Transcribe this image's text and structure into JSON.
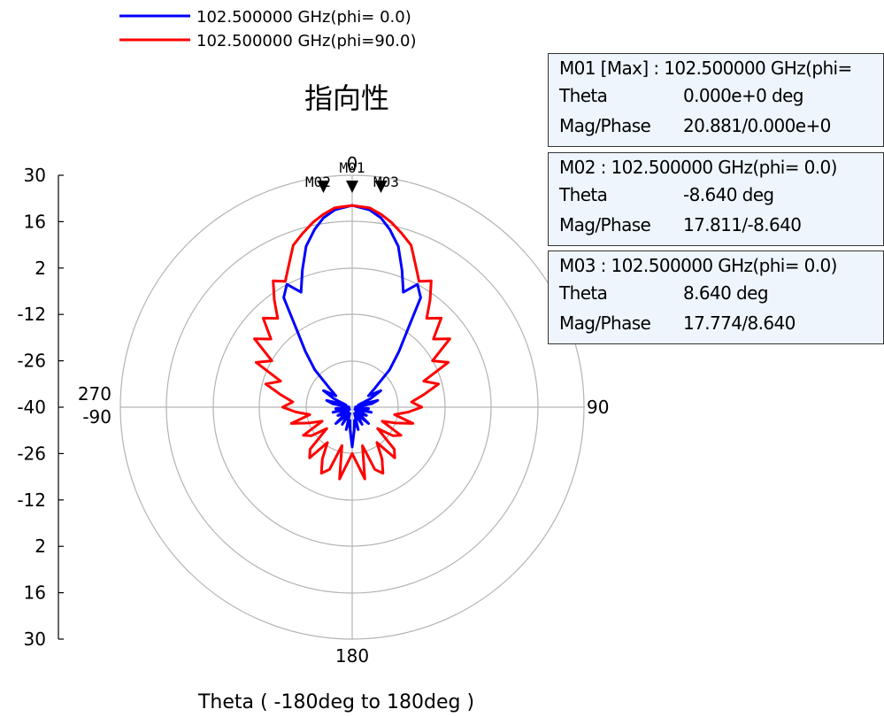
{
  "chart_data": {
    "type": "polar-line",
    "title": "指向性",
    "xlabel": "Theta ( -180deg to 180deg )",
    "radial_axis": {
      "min": -40,
      "max": 30,
      "tick_labels_upper": [
        "30",
        "16",
        "2",
        "-12",
        "-26",
        "-40"
      ],
      "tick_labels_lower": [
        "-26",
        "-12",
        "2",
        "16",
        "30"
      ],
      "ticks": [
        30,
        16,
        2,
        -12,
        -26,
        -40
      ]
    },
    "angle_labels": {
      "top": "0",
      "right": "90",
      "bottom": "180",
      "left_upper": "270",
      "left_lower": "-90"
    },
    "grid": true,
    "legend_position": "top-left",
    "series": [
      {
        "name": "102.500000 GHz(phi= 0.0)",
        "color": "#0000ff",
        "theta": [
          0,
          5,
          8.64,
          12,
          16,
          20,
          24,
          28,
          32,
          36,
          40,
          45,
          50,
          55,
          60,
          65,
          70,
          75,
          80,
          85,
          90,
          95,
          100,
          105,
          110,
          115,
          120,
          125,
          130,
          135,
          140,
          145,
          150,
          155,
          160,
          165,
          170,
          175,
          180
        ],
        "values": [
          20.88,
          19.8,
          17.8,
          14.8,
          10.5,
          4,
          -2,
          2,
          -1,
          -12,
          -18,
          -24,
          -31,
          -34,
          -30,
          -34,
          -38,
          -32,
          -34,
          -39,
          -37,
          -35,
          -38,
          -34,
          -37,
          -39,
          -35,
          -36,
          -39,
          -33,
          -36,
          -38,
          -34,
          -37,
          -38,
          -33,
          -36,
          -33,
          -28
        ]
      },
      {
        "name": "102.500000 GHz(phi=90.0)",
        "color": "#ff0000",
        "theta": [
          0,
          5,
          8.64,
          12,
          16,
          20,
          24,
          28,
          32,
          36,
          40,
          45,
          50,
          55,
          60,
          65,
          70,
          75,
          80,
          85,
          90,
          95,
          100,
          105,
          110,
          115,
          120,
          125,
          130,
          135,
          140,
          145,
          150,
          155,
          160,
          165,
          170,
          175,
          180
        ],
        "values": [
          20.88,
          20.4,
          18.8,
          17,
          14.5,
          12,
          7,
          3,
          5,
          0,
          -5,
          -2,
          -8,
          -4,
          -12,
          -8,
          -17,
          -13,
          -18,
          -22,
          -19,
          -23,
          -27,
          -21,
          -26,
          -30,
          -23,
          -25,
          -30,
          -22,
          -20,
          -27,
          -22,
          -18,
          -20,
          -28,
          -18,
          -23,
          -26
        ]
      }
    ],
    "markers": [
      {
        "label": "M01",
        "theta": 0,
        "value": 20.881
      },
      {
        "label": "M02",
        "theta": -8.64,
        "value": 17.811
      },
      {
        "label": "M03",
        "theta": 8.64,
        "value": 17.774
      }
    ]
  },
  "marker_table": [
    {
      "header": "M01 [Max] : 102.500000 GHz(phi=",
      "theta_label": "Theta",
      "theta_value": "0.000e+0 deg",
      "mag_label": "Mag/Phase",
      "mag_value": "20.881/0.000e+0"
    },
    {
      "header": "M02 : 102.500000 GHz(phi= 0.0)",
      "theta_label": "Theta",
      "theta_value": "-8.640 deg",
      "mag_label": "Mag/Phase",
      "mag_value": "17.811/-8.640"
    },
    {
      "header": "M03 : 102.500000 GHz(phi= 0.0)",
      "theta_label": "Theta",
      "theta_value": "8.640 deg",
      "mag_label": "Mag/Phase",
      "mag_value": "17.774/8.640"
    }
  ]
}
